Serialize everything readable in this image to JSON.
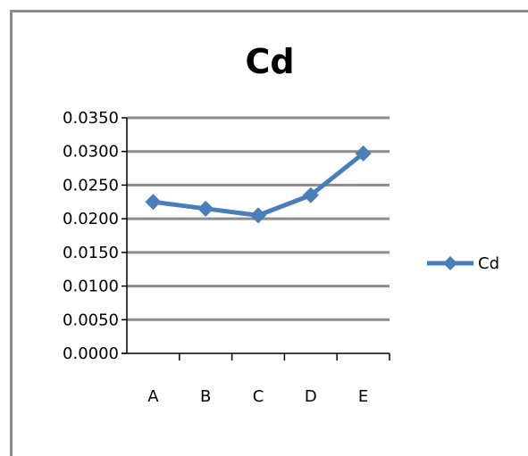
{
  "chart_data": {
    "type": "line",
    "title": "Cd",
    "categories": [
      "A",
      "B",
      "C",
      "D",
      "E"
    ],
    "series": [
      {
        "name": "Cd",
        "values": [
          0.0225,
          0.0215,
          0.0205,
          0.0235,
          0.0297
        ]
      }
    ],
    "ylim": [
      0,
      0.035
    ],
    "yticks": [
      "0.0350",
      "0.0300",
      "0.0250",
      "0.0200",
      "0.0150",
      "0.0100",
      "0.0050",
      "0.0000"
    ],
    "ytick_values": [
      0.035,
      0.03,
      0.025,
      0.02,
      0.015,
      0.01,
      0.005,
      0
    ],
    "grid": true,
    "legend": "right",
    "xlabel": "",
    "ylabel": ""
  },
  "colors": {
    "series": "#4a7ebb",
    "grid": "#8c8c8c",
    "axis": "#000000",
    "frame": "#8a8a8a"
  }
}
